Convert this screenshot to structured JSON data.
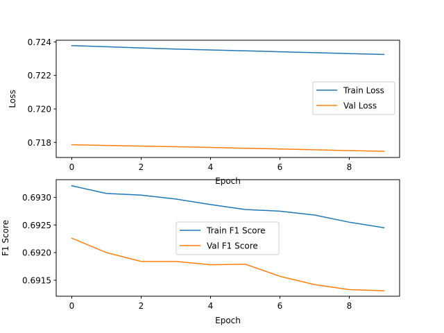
{
  "chart_data": [
    {
      "type": "line",
      "title": "",
      "xlabel": "Epoch",
      "ylabel": "Loss",
      "x": [
        0,
        1,
        2,
        3,
        4,
        5,
        6,
        7,
        8,
        9
      ],
      "xlim": [
        -0.45,
        9.45
      ],
      "ylim": [
        0.7171,
        0.7241
      ],
      "xticks": [
        0,
        2,
        4,
        6,
        8
      ],
      "xtick_labels": [
        "0",
        "2",
        "4",
        "6",
        "8"
      ],
      "yticks": [
        0.718,
        0.72,
        0.722,
        0.724
      ],
      "ytick_labels": [
        "0.718",
        "0.720",
        "0.722",
        "0.724"
      ],
      "grid": false,
      "legend_position": "center-right",
      "series": [
        {
          "name": "Train Loss",
          "color": "#1f77b4",
          "values": [
            0.72378,
            0.72371,
            0.72364,
            0.72357,
            0.72352,
            0.72347,
            0.72341,
            0.72336,
            0.7233,
            0.72325
          ]
        },
        {
          "name": "Val Loss",
          "color": "#ff7f0e",
          "values": [
            0.71786,
            0.71782,
            0.71778,
            0.71774,
            0.7177,
            0.71765,
            0.71761,
            0.71756,
            0.71751,
            0.71747
          ]
        }
      ]
    },
    {
      "type": "line",
      "title": "",
      "xlabel": "Epoch",
      "ylabel": "F1 Score",
      "x": [
        0,
        1,
        2,
        3,
        4,
        5,
        6,
        7,
        8,
        9
      ],
      "xlim": [
        -0.45,
        9.45
      ],
      "ylim": [
        0.69121,
        0.69332
      ],
      "xticks": [
        0,
        2,
        4,
        6,
        8
      ],
      "xtick_labels": [
        "0",
        "2",
        "4",
        "6",
        "8"
      ],
      "yticks": [
        0.6915,
        0.692,
        0.6925,
        0.693
      ],
      "ytick_labels": [
        "0.6915",
        "0.6920",
        "0.6925",
        "0.6930"
      ],
      "grid": false,
      "legend_position": "center",
      "series": [
        {
          "name": "Train F1 Score",
          "color": "#1f77b4",
          "values": [
            0.69321,
            0.69307,
            0.69304,
            0.69297,
            0.69287,
            0.69278,
            0.69275,
            0.69268,
            0.69255,
            0.69245
          ]
        },
        {
          "name": "Val F1 Score",
          "color": "#ff7f0e",
          "values": [
            0.69226,
            0.692,
            0.69184,
            0.69184,
            0.69178,
            0.69179,
            0.69157,
            0.69142,
            0.69133,
            0.69131
          ]
        }
      ]
    }
  ]
}
